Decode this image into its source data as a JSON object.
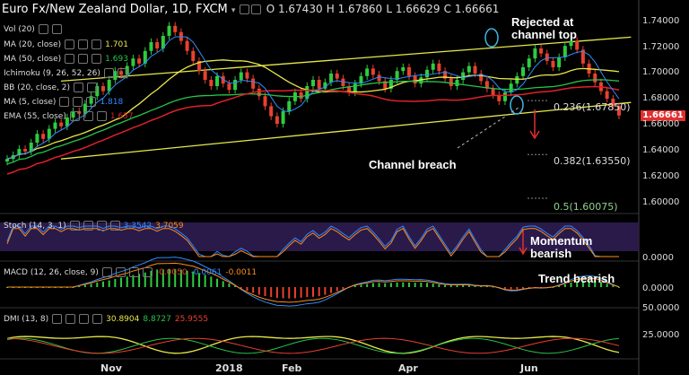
{
  "header": {
    "symbol": "Euro Fx/New Zealand Dollar, 1D, FXCM",
    "open": "O 1.67430",
    "high": "H 1.67860",
    "low": "L 1.66629",
    "close": "C 1.66661"
  },
  "legend": {
    "vol": "Vol (20)",
    "ma20": "MA (20, close)",
    "ma20_val": "1.701",
    "ma50": "MA (50, close)",
    "ma50_val": "1.693",
    "ichimoku": "Ichimoku (9, 26, 52, 26)",
    "bb": "BB (20, close, 2)",
    "ma5": "MA (5, close)",
    "ma5_val": "1.818",
    "ema": "EMA (55, close)",
    "ema_val": "1.657"
  },
  "annotations": {
    "rejected": "Rejected at channel top",
    "breach": "Channel breach",
    "momentum": "Momentum bearish",
    "trend": "Trend bearish"
  },
  "fib": {
    "f236": "0.236(1.67850)",
    "f382": "0.382(1.63550)",
    "f5": "0.5(1.60075)"
  },
  "price_tag": "1.66661",
  "y_ticks": [
    "1.74000",
    "1.72000",
    "1.70000",
    "1.68000",
    "1.66000",
    "1.64000",
    "1.62000",
    "1.60000"
  ],
  "x_ticks": [
    "Nov",
    "2018",
    "Feb",
    "Apr",
    "Jun"
  ],
  "stoch": {
    "label": "Stoch (14, 3, 1)",
    "v1": "3.3542",
    "v2": "3.7059",
    "tick": "0.0000"
  },
  "macd": {
    "label": "MACD (12, 26, close, 9)",
    "v1": "-0.0050",
    "v2": "-0.0061",
    "v3": "-0.0011",
    "tick": "0.0000"
  },
  "dmi": {
    "label": "DMI (13, 8)",
    "v1": "30.8904",
    "v2": "8.8727",
    "v3": "25.9555",
    "tick_top": "50.0000",
    "tick_mid": "25.0000"
  },
  "colors": {
    "up": "#2ecc40",
    "down": "#e8412e",
    "channel": "#e8e84a",
    "ma20": "#e8e84a",
    "ma50": "#27c44a",
    "ema": "#e0202a",
    "ma5": "#2f8cff",
    "annotation_circle": "#3fb7e6",
    "stoch_bg": "#2a1a4a"
  },
  "chart_data": {
    "type": "candlestick",
    "title": "Euro Fx/New Zealand Dollar, 1D, FXCM",
    "x_range": [
      "Oct 2017",
      "Jun 2018"
    ],
    "ylim": [
      1.59,
      1.75
    ],
    "closes": [
      1.632,
      1.635,
      1.64,
      1.638,
      1.645,
      1.652,
      1.648,
      1.656,
      1.661,
      1.658,
      1.665,
      1.67,
      1.668,
      1.676,
      1.682,
      1.69,
      1.686,
      1.695,
      1.702,
      1.699,
      1.706,
      1.712,
      1.708,
      1.718,
      1.725,
      1.72,
      1.73,
      1.738,
      1.733,
      1.726,
      1.718,
      1.71,
      1.702,
      1.695,
      1.69,
      1.698,
      1.692,
      1.687,
      1.695,
      1.701,
      1.696,
      1.688,
      1.682,
      1.674,
      1.666,
      1.66,
      1.67,
      1.678,
      1.685,
      1.68,
      1.69,
      1.695,
      1.688,
      1.693,
      1.7,
      1.696,
      1.69,
      1.685,
      1.692,
      1.698,
      1.704,
      1.699,
      1.694,
      1.688,
      1.695,
      1.702,
      1.705,
      1.698,
      1.692,
      1.697,
      1.703,
      1.708,
      1.702,
      1.696,
      1.69,
      1.695,
      1.701,
      1.706,
      1.7,
      1.694,
      1.688,
      1.683,
      1.678,
      1.685,
      1.692,
      1.698,
      1.705,
      1.712,
      1.72,
      1.716,
      1.71,
      1.705,
      1.713,
      1.722,
      1.726,
      1.719,
      1.708,
      1.7,
      1.693,
      1.686,
      1.68,
      1.674,
      1.6666
    ],
    "channel_top": [
      [
        0,
        1.694
      ],
      [
        104,
        1.729
      ]
    ],
    "channel_bottom": [
      [
        0,
        1.632
      ],
      [
        104,
        1.677
      ]
    ],
    "fib_levels": [
      {
        "label": "0.236",
        "value": 1.6785
      },
      {
        "label": "0.382",
        "value": 1.6355
      },
      {
        "label": "0.5",
        "value": 1.60075
      }
    ]
  }
}
